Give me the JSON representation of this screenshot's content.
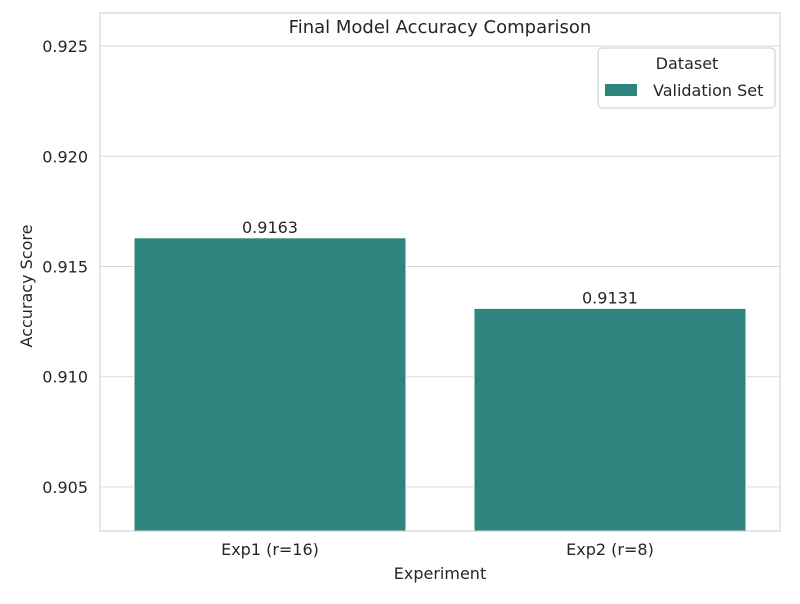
{
  "chart_data": {
    "type": "bar",
    "title": "Final Model Accuracy Comparison",
    "xlabel": "Experiment",
    "ylabel": "Accuracy Score",
    "categories": [
      "Exp1 (r=16)",
      "Exp2 (r=8)"
    ],
    "series": [
      {
        "name": "Validation Set",
        "values": [
          0.9163,
          0.9131
        ],
        "color": "#2e857e"
      }
    ],
    "data_labels": [
      "0.9163",
      "0.9131"
    ],
    "ylim": [
      0.903,
      0.9265
    ],
    "yticks": [
      0.905,
      0.91,
      0.915,
      0.92,
      0.925
    ],
    "ytick_labels": [
      "0.905",
      "0.910",
      "0.915",
      "0.920",
      "0.925"
    ],
    "grid": true,
    "legend": {
      "title": "Dataset",
      "placement": "top-right"
    },
    "colors": {
      "grid": "#d9d9d9",
      "frame": "#cccccc",
      "text": "#262626"
    }
  }
}
